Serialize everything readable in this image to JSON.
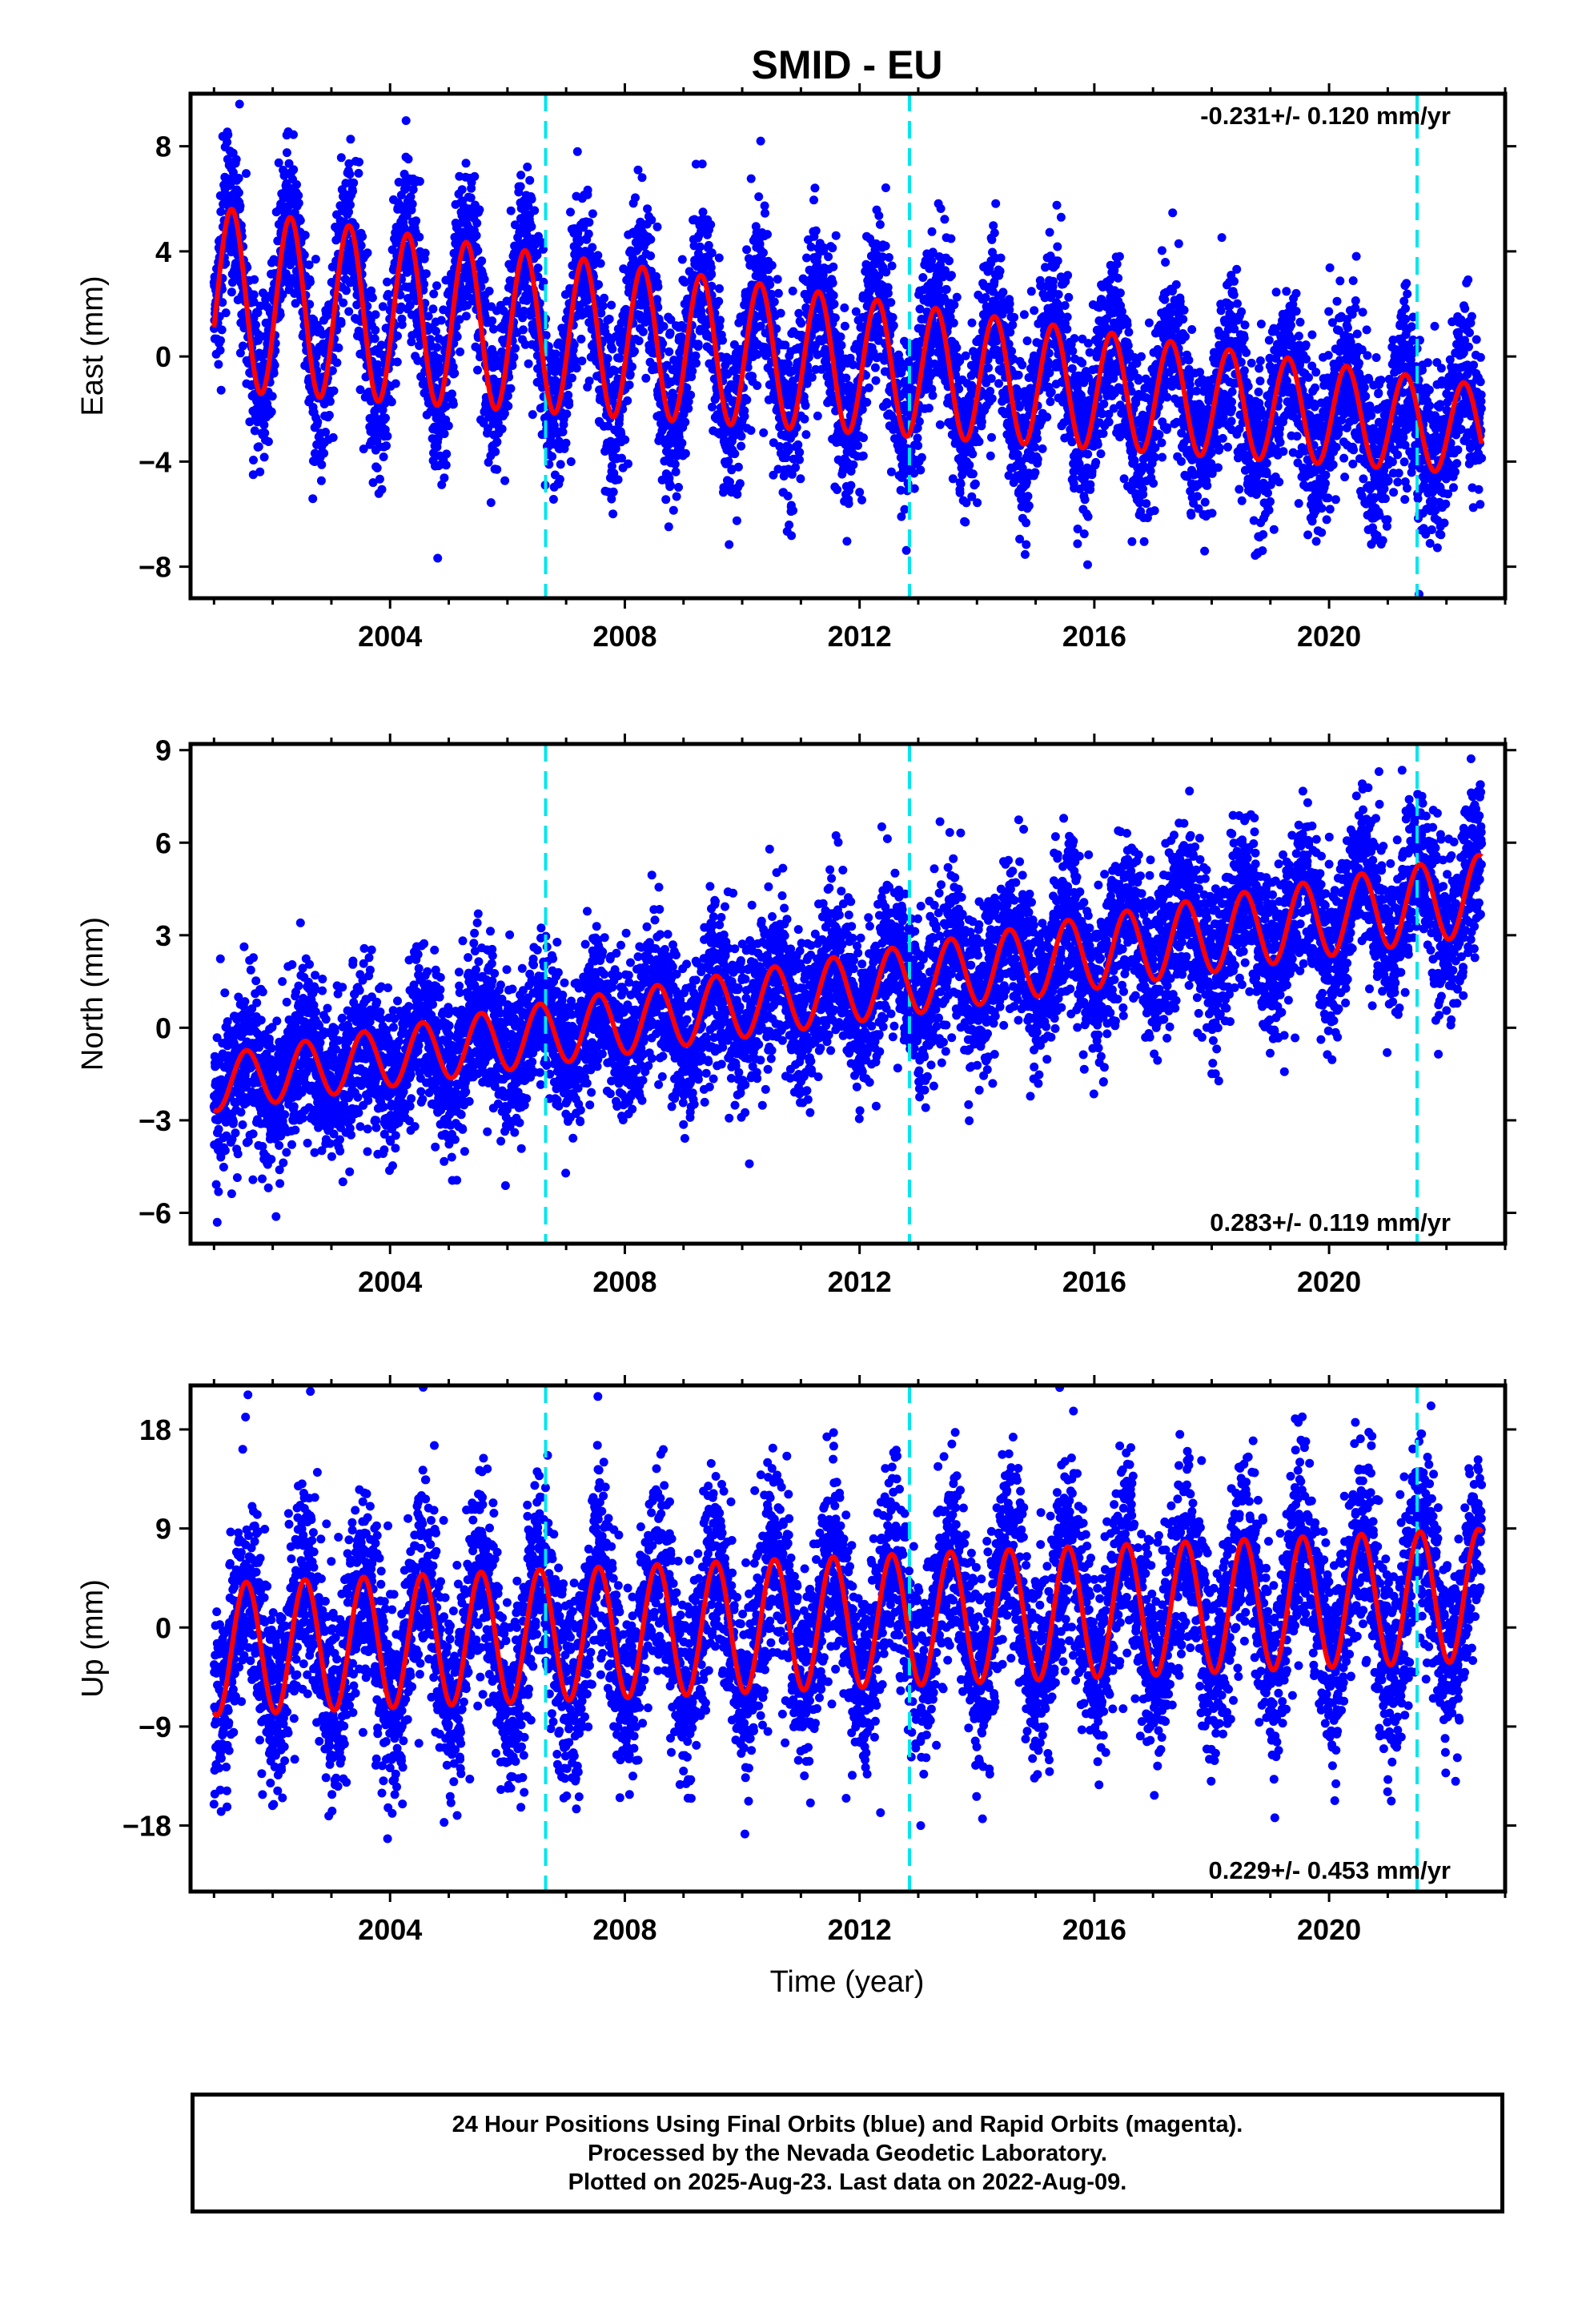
{
  "title": "SMID - EU",
  "colors": {
    "final_orbits": "#0000ff",
    "model_fit": "#ff0000",
    "equipment_change": "#00e5ee",
    "frame": "#000000"
  },
  "xaxis": {
    "label": "Time (year)",
    "range": [
      2000.6,
      2023.0
    ],
    "major_ticks": [
      2004,
      2008,
      2012,
      2016,
      2020
    ],
    "tick_labels": [
      "2004",
      "2008",
      "2012",
      "2016",
      "2020"
    ]
  },
  "chart_data": [
    {
      "type": "scatter",
      "component": "East",
      "ylabel": "East (mm)",
      "ylim": [
        -9.2,
        10.0
      ],
      "yticks": [
        -8,
        -4,
        0,
        4,
        8
      ],
      "ytick_labels": [
        "−8",
        "−4",
        "0",
        "4",
        "8"
      ],
      "velocity_text": "-0.231+/- 0.120 mm/yr",
      "velocity_position": "top-right",
      "time_start": 2001.0,
      "time_end": 2022.6,
      "model": {
        "offset": 2.2,
        "slope_mm_per_yr": -0.231,
        "annual_amplitude_start": 3.5,
        "annual_amplitude_end": 1.7,
        "annual_phase_year": 2001.05
      },
      "scatter_sigma": 1.6,
      "equipment_changes": [
        2006.65,
        2012.85,
        2021.5
      ]
    },
    {
      "type": "scatter",
      "component": "North",
      "ylabel": "North (mm)",
      "ylim": [
        -7.0,
        9.2
      ],
      "yticks": [
        -6,
        -3,
        0,
        3,
        6,
        9
      ],
      "ytick_labels": [
        "−6",
        "−3",
        "0",
        "3",
        "6",
        "9"
      ],
      "velocity_text": "0.283+/- 0.119 mm/yr",
      "velocity_position": "bottom-right",
      "time_start": 2001.0,
      "time_end": 2022.6,
      "model": {
        "offset": -1.8,
        "slope_mm_per_yr": 0.283,
        "annual_amplitude_start": 0.9,
        "annual_amplitude_end": 1.3,
        "annual_phase_year": 2001.3
      },
      "scatter_sigma": 1.3,
      "equipment_changes": [
        2006.65,
        2012.85,
        2021.5
      ]
    },
    {
      "type": "scatter",
      "component": "Up",
      "ylabel": "Up (mm)",
      "ylim": [
        -24.0,
        22.0
      ],
      "yticks": [
        -18,
        -9,
        0,
        9,
        18
      ],
      "ytick_labels": [
        "−18",
        "−9",
        "0",
        "9",
        "18"
      ],
      "velocity_text": "0.229+/- 0.453 mm/yr",
      "velocity_position": "bottom-right",
      "time_start": 2001.0,
      "time_end": 2022.6,
      "model": {
        "offset": -2.0,
        "slope_mm_per_yr": 0.229,
        "annual_amplitude_start": 6.0,
        "annual_amplitude_end": 6.0,
        "annual_phase_year": 2001.3
      },
      "scatter_sigma": 4.5,
      "equipment_changes": [
        2006.65,
        2012.85,
        2021.5
      ]
    }
  ],
  "caption": {
    "line1": "24 Hour Positions Using Final Orbits (blue) and Rapid Orbits (magenta).",
    "line2": "Processed by the Nevada Geodetic Laboratory.",
    "line3": "Plotted on 2025-Aug-23. Last data on 2022-Aug-09."
  }
}
